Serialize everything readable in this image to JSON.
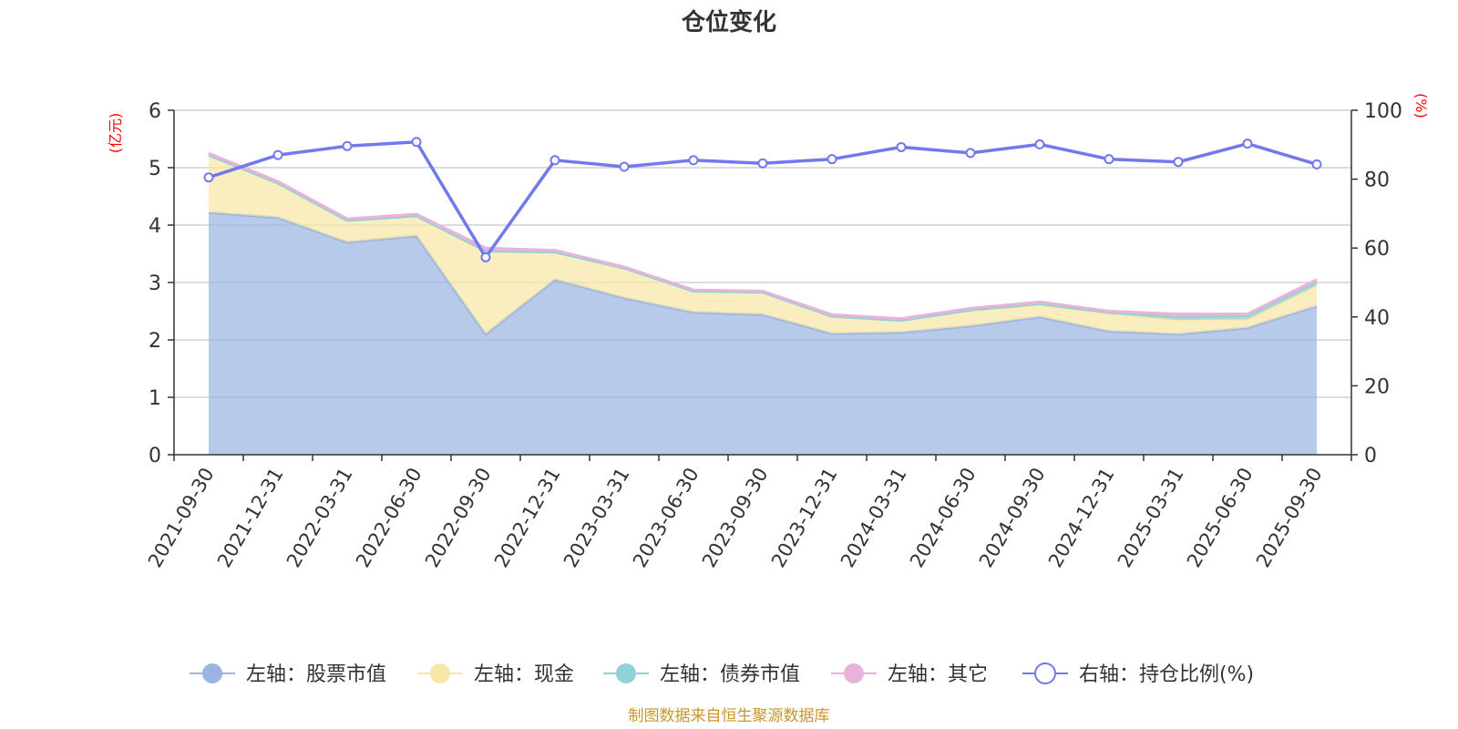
{
  "chart_data": {
    "type": "area",
    "title": "仓位变化",
    "left_axis_unit": "(亿元)",
    "right_axis_unit": "(%)",
    "x": [
      "2021-09-30",
      "2021-12-31",
      "2022-03-31",
      "2022-06-30",
      "2022-09-30",
      "2022-12-31",
      "2023-03-31",
      "2023-06-30",
      "2023-09-30",
      "2023-12-31",
      "2024-03-31",
      "2024-06-30",
      "2024-09-30",
      "2024-12-31",
      "2025-03-31",
      "2025-06-30",
      "2025-09-30"
    ],
    "y_left": {
      "min": 0,
      "max": 6,
      "ticks": [
        "0",
        "1",
        "2",
        "3",
        "4",
        "5",
        "6"
      ]
    },
    "y_right": {
      "min": 0,
      "max": 100,
      "ticks": [
        "0",
        "20",
        "40",
        "60",
        "80",
        "100"
      ]
    },
    "grid": true,
    "legend_position": "bottom",
    "series": [
      {
        "name": "左轴：股票市值",
        "axis": "left",
        "kind": "stacked-area",
        "color": "#9bb5e0",
        "values": [
          4.22,
          4.13,
          3.7,
          3.81,
          2.1,
          3.05,
          2.73,
          2.48,
          2.44,
          2.11,
          2.13,
          2.24,
          2.4,
          2.15,
          2.1,
          2.21,
          2.59
        ]
      },
      {
        "name": "左轴：现金",
        "axis": "left",
        "kind": "stacked-area",
        "color": "#f8e7a8",
        "values": [
          1.0,
          0.6,
          0.38,
          0.35,
          1.45,
          0.48,
          0.52,
          0.37,
          0.39,
          0.3,
          0.21,
          0.28,
          0.21,
          0.31,
          0.25,
          0.15,
          0.36
        ]
      },
      {
        "name": "左轴：债券市值",
        "axis": "left",
        "kind": "stacked-area",
        "color": "#8fd3d6",
        "values": [
          0,
          0,
          0,
          0,
          0,
          0,
          0,
          0,
          0,
          0,
          0,
          0,
          0.02,
          0.02,
          0.05,
          0.06,
          0.06
        ]
      },
      {
        "name": "左轴：其它",
        "axis": "left",
        "kind": "stacked-area",
        "color": "#e8b3d8",
        "values": [
          0.03,
          0.03,
          0.03,
          0.03,
          0.05,
          0.03,
          0.02,
          0.02,
          0.02,
          0.03,
          0.03,
          0.03,
          0.03,
          0.02,
          0.05,
          0.03,
          0.04
        ]
      },
      {
        "name": "右轴：持仓比例(%)",
        "axis": "right",
        "kind": "line",
        "color": "#7279ee",
        "values": [
          80.5,
          87.0,
          89.6,
          90.8,
          57.3,
          85.5,
          83.6,
          85.5,
          84.6,
          85.8,
          89.3,
          87.6,
          90.1,
          85.8,
          85.0,
          90.3,
          84.3
        ]
      }
    ]
  },
  "source_note": "制图数据来自恒生聚源数据库"
}
